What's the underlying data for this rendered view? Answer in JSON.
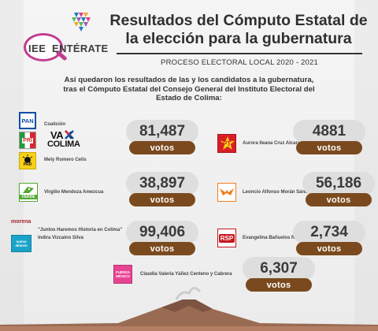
{
  "header": {
    "logo_iee": "IEE",
    "logo_enterate": "ENTÉRATE",
    "title_line1": "Resultados del Cómputo Estatal de",
    "title_line2": "la elección para la gubernatura",
    "subtitle": "PROCESO ELECTORAL LOCAL 2020 - 2021"
  },
  "intro": {
    "line1": "Así quedaron los resultados de las y los candidatos a la gubernatura,",
    "line2": "tras el Cómputo Estatal del Consejo General del Instituto Electoral del",
    "line3": "Estado de Colima:"
  },
  "votes_label": "votos",
  "candidates": [
    {
      "coalition_label": "Coalición",
      "coalition_name_line1": "VA X",
      "coalition_name_line2": "COLIMA",
      "name": "Mely Romero Celis",
      "votes": "81,487",
      "party_logos": [
        "PAN",
        "PRI",
        "PRD"
      ]
    },
    {
      "name": "Aurora Ileana Cruz Alcaraz",
      "votes": "4881",
      "party_logos": [
        "PT"
      ]
    },
    {
      "name": "Virgilio Mendoza Amezcua",
      "votes": "38,897",
      "party_logos": [
        "VERDE"
      ]
    },
    {
      "name": "Leoncio Alfonso Morán Sánchez",
      "votes": "56,186",
      "party_logos": [
        "MC"
      ]
    },
    {
      "coalition_name": "\"Juntos Haremos Historia en Colima\"",
      "name": "Indira Vizcaíno Silva",
      "votes": "99,406",
      "party_logos": [
        "morena",
        "nueva alianza"
      ]
    },
    {
      "name": "Evangelina Bañuelos Rodríguez",
      "votes": "2,734",
      "party_logos": [
        "RSP"
      ]
    },
    {
      "name": "Claudia Valeria Yáñez Centeno y Cabrera",
      "votes": "6,307",
      "party_logos": [
        "FUERZA MÉXICO"
      ]
    }
  ],
  "colors": {
    "pill_gray": "#dedede",
    "votes_brown": "#7a4a1e",
    "pan_blue": "#0a4fa3",
    "pri_red": "#d8262c",
    "pri_green": "#1f9a3f",
    "prd_yellow": "#f7d117",
    "pt_red": "#d91f26",
    "verde_green": "#52a832",
    "mc_orange": "#f07d1d",
    "morena_maroon": "#a4242f",
    "alianza_teal": "#1aa3c8",
    "rsp_red": "#c4161c",
    "fuerza_pink": "#e84393"
  }
}
